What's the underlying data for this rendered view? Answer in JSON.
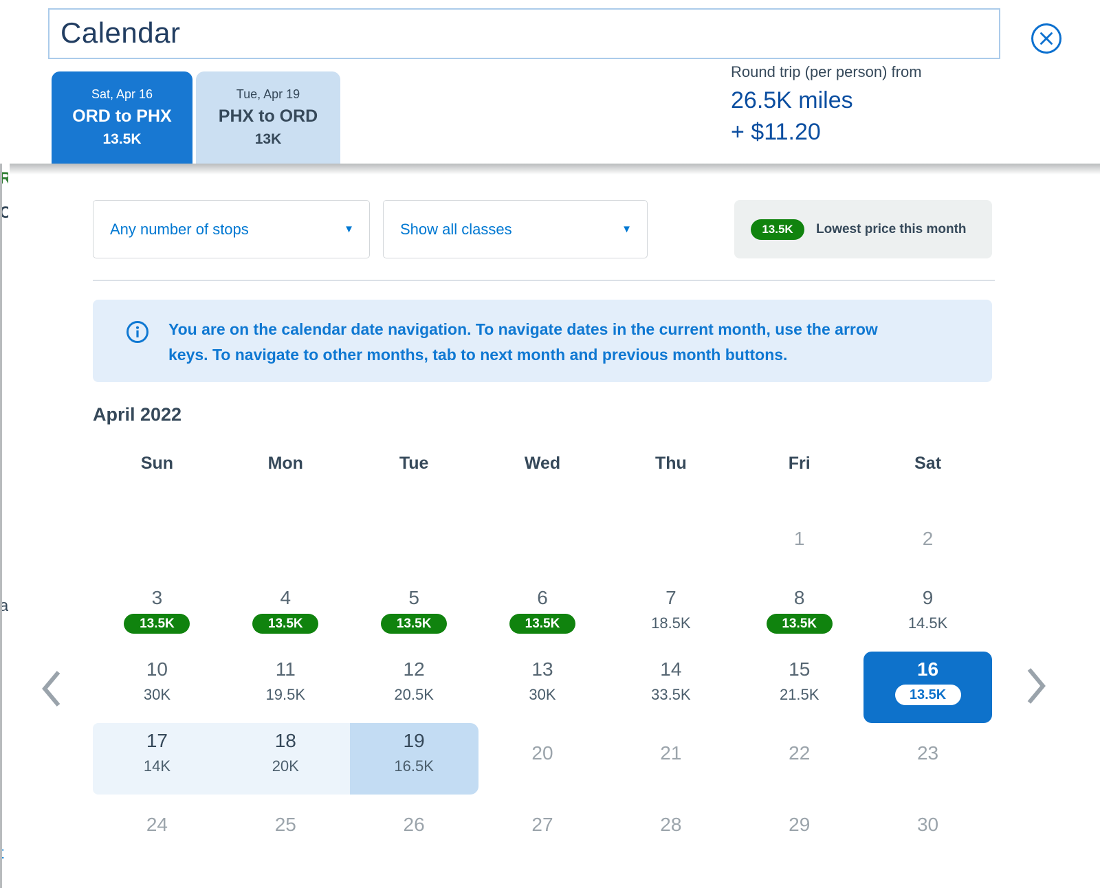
{
  "modal": {
    "title": "Calendar"
  },
  "trip_tabs": [
    {
      "date": "Sat, Apr 16",
      "route": "ORD to PHX",
      "price": "13.5K"
    },
    {
      "date": "Tue, Apr 19",
      "route": "PHX to ORD",
      "price": "13K"
    }
  ],
  "price_summary": {
    "label": "Round trip (per person) from",
    "miles": "26.5K miles",
    "fees": "+ $11.20"
  },
  "filters": {
    "stops_selected": "Any number of stops",
    "classes_selected": "Show all classes"
  },
  "legend": {
    "badge": "13.5K",
    "label": "Lowest price this month"
  },
  "info_banner": "You are on the calendar date navigation. To navigate dates in the current month, use the arrow keys. To navigate to other months, tab to next month and previous month buttons.",
  "calendar": {
    "month": "April 2022",
    "weekdays": [
      "Sun",
      "Mon",
      "Tue",
      "Wed",
      "Thu",
      "Fri",
      "Sat"
    ],
    "cells": [
      {
        "day": "",
        "price": "",
        "state": "empty"
      },
      {
        "day": "",
        "price": "",
        "state": "empty"
      },
      {
        "day": "",
        "price": "",
        "state": "empty"
      },
      {
        "day": "",
        "price": "",
        "state": "empty"
      },
      {
        "day": "",
        "price": "",
        "state": "empty"
      },
      {
        "day": "1",
        "price": "",
        "state": "disabled"
      },
      {
        "day": "2",
        "price": "",
        "state": "disabled"
      },
      {
        "day": "3",
        "price": "13.5K",
        "state": "lowest"
      },
      {
        "day": "4",
        "price": "13.5K",
        "state": "lowest"
      },
      {
        "day": "5",
        "price": "13.5K",
        "state": "lowest"
      },
      {
        "day": "6",
        "price": "13.5K",
        "state": "lowest"
      },
      {
        "day": "7",
        "price": "18.5K",
        "state": "available"
      },
      {
        "day": "8",
        "price": "13.5K",
        "state": "lowest"
      },
      {
        "day": "9",
        "price": "14.5K",
        "state": "available"
      },
      {
        "day": "10",
        "price": "30K",
        "state": "available"
      },
      {
        "day": "11",
        "price": "19.5K",
        "state": "available"
      },
      {
        "day": "12",
        "price": "20.5K",
        "state": "available"
      },
      {
        "day": "13",
        "price": "30K",
        "state": "available"
      },
      {
        "day": "14",
        "price": "33.5K",
        "state": "available"
      },
      {
        "day": "15",
        "price": "21.5K",
        "state": "available"
      },
      {
        "day": "16",
        "price": "13.5K",
        "state": "selected-depart"
      },
      {
        "day": "17",
        "price": "14K",
        "state": "in-range range-start"
      },
      {
        "day": "18",
        "price": "20K",
        "state": "in-range"
      },
      {
        "day": "19",
        "price": "16.5K",
        "state": "selected-return"
      },
      {
        "day": "20",
        "price": "",
        "state": "disabled"
      },
      {
        "day": "21",
        "price": "",
        "state": "disabled"
      },
      {
        "day": "22",
        "price": "",
        "state": "disabled"
      },
      {
        "day": "23",
        "price": "",
        "state": "disabled"
      },
      {
        "day": "24",
        "price": "",
        "state": "disabled"
      },
      {
        "day": "25",
        "price": "",
        "state": "disabled"
      },
      {
        "day": "26",
        "price": "",
        "state": "disabled"
      },
      {
        "day": "27",
        "price": "",
        "state": "disabled"
      },
      {
        "day": "28",
        "price": "",
        "state": "disabled"
      },
      {
        "day": "29",
        "price": "",
        "state": "disabled"
      },
      {
        "day": "30",
        "price": "",
        "state": "disabled"
      }
    ]
  },
  "background_fragments": [
    "R",
    "C",
    "a",
    "t"
  ],
  "colors": {
    "primary_blue": "#0078d2",
    "selected_blue": "#0e72cb",
    "tab_blue": "#1878d2",
    "tab_light_blue": "#cbdff2",
    "lowest_green": "#10830e",
    "navy_heading": "#36495a",
    "miles_navy": "#0b4ea0",
    "banner_bg": "#e3eefa",
    "range_light": "#ecf4fb",
    "range_selected": "#c3dcf3",
    "disabled_gray": "#9ba4ab"
  }
}
